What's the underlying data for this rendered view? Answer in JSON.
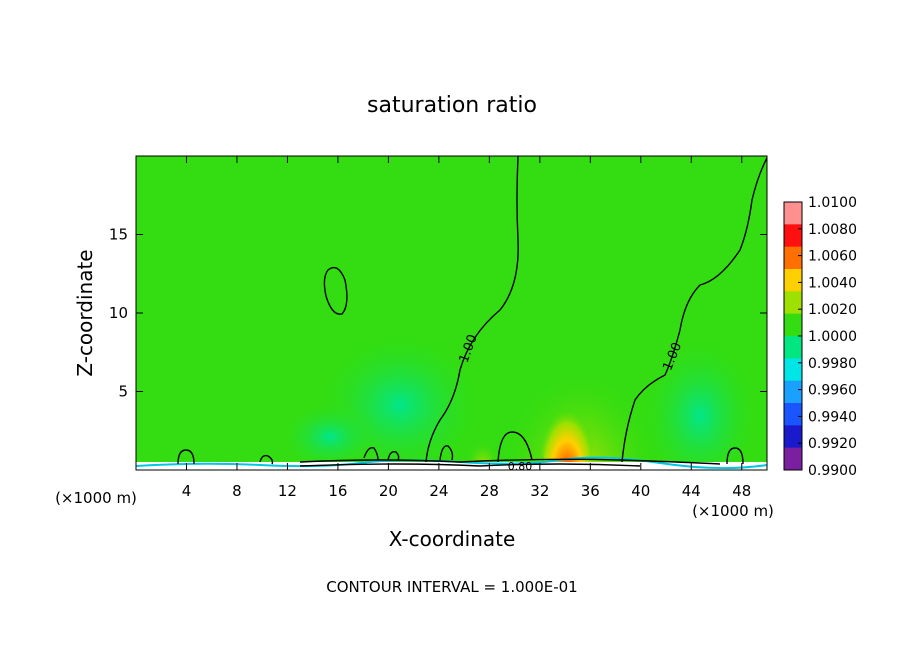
{
  "chart_data": {
    "type": "heatmap",
    "title": "saturation ratio",
    "xlabel": "X-coordinate",
    "ylabel": "Z-coordinate",
    "x_unit_left": "(×1000 m)",
    "x_unit_right": "(×1000 m)",
    "xlim": [
      0,
      50
    ],
    "ylim": [
      0,
      20
    ],
    "x_ticks": [
      4,
      8,
      12,
      16,
      20,
      24,
      28,
      32,
      36,
      40,
      44,
      48
    ],
    "y_ticks": [
      5,
      10,
      15
    ],
    "colorbar": {
      "levels": [
        0.99,
        0.992,
        0.994,
        0.996,
        0.998,
        1.0,
        1.002,
        1.004,
        1.006,
        1.008,
        1.01
      ],
      "labels": [
        "0.9900",
        "0.9920",
        "0.9940",
        "0.9960",
        "0.9980",
        "1.0000",
        "1.0020",
        "1.0040",
        "1.0060",
        "1.0080",
        "1.0100"
      ],
      "colors": [
        "#7a1fa0",
        "#1a1acc",
        "#1a55ff",
        "#1aa0ff",
        "#00e6e6",
        "#00e680",
        "#33dd11",
        "#9ee000",
        "#ffd000",
        "#ff7000",
        "#ff1010",
        "#ff9090"
      ]
    },
    "contour_labels": [
      "1.00",
      "1.00",
      "0.80"
    ],
    "contour_interval_text": "CONTOUR INTERVAL = 1.000E-01",
    "colors": {
      "background": "#33dd11",
      "contour": "#000000"
    }
  }
}
